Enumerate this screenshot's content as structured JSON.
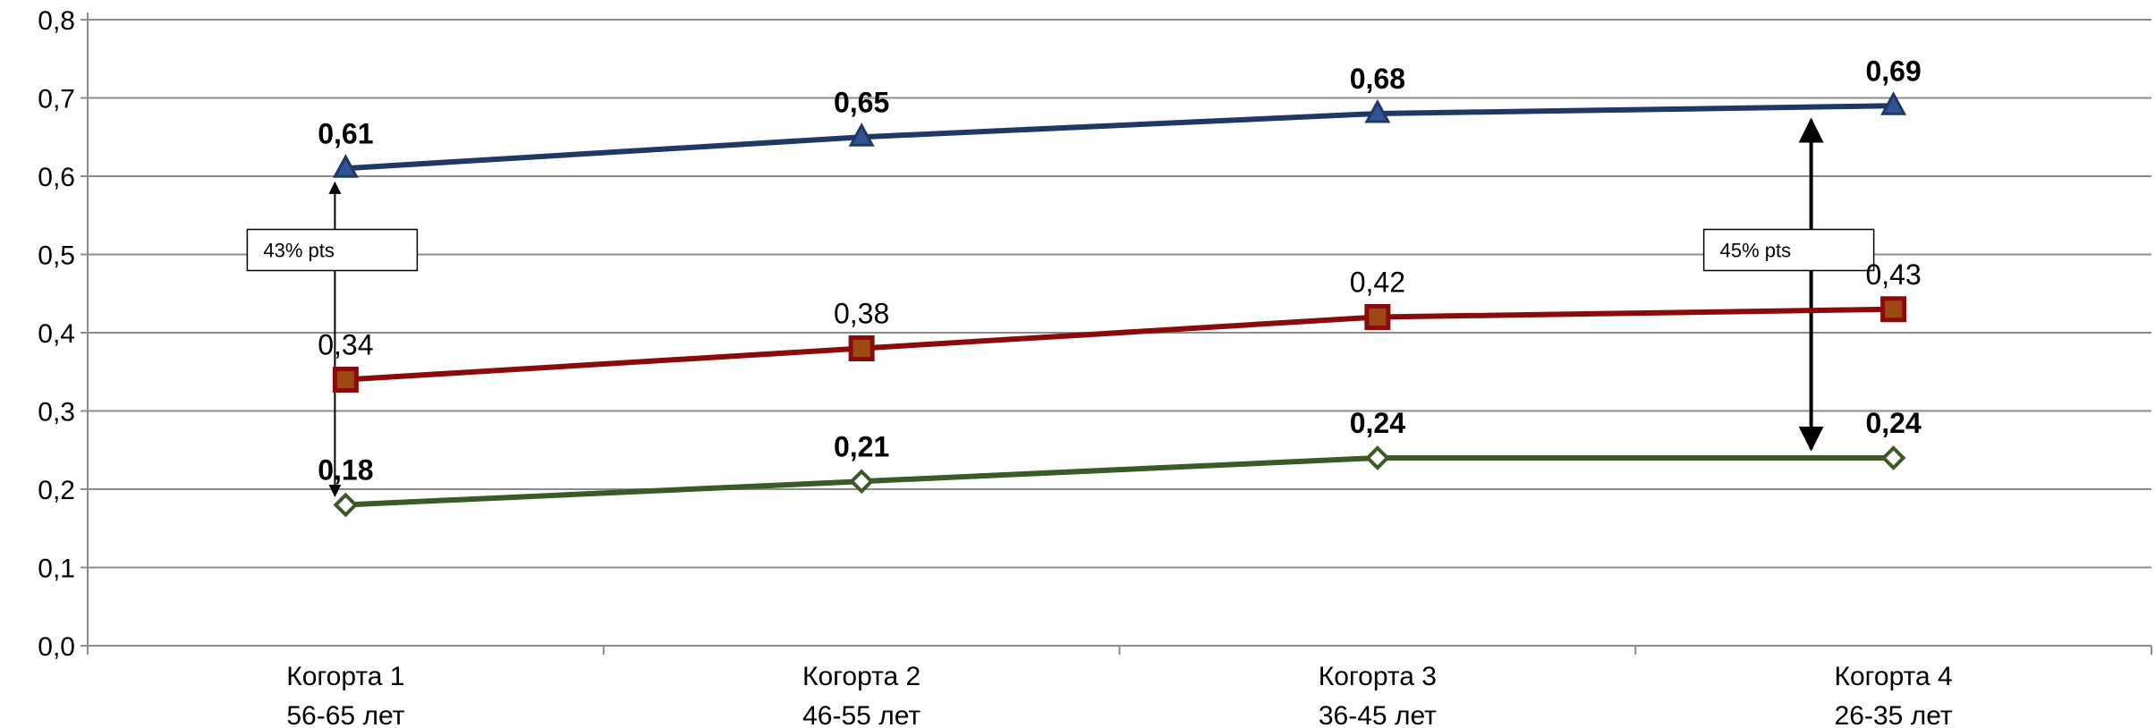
{
  "chart_data": {
    "type": "line",
    "categories": [
      {
        "line1": "Когорта 1",
        "line2": "56-65 лет"
      },
      {
        "line1": "Когорта 2",
        "line2": "46-55 лет"
      },
      {
        "line1": "Когорта 3",
        "line2": "36-45 лет"
      },
      {
        "line1": "Когорта 4",
        "line2": "26-35 лет"
      }
    ],
    "series": [
      {
        "values": [
          0.61,
          0.65,
          0.68,
          0.69
        ],
        "labels": [
          "0,61",
          "0,65",
          "0,68",
          "0,69"
        ],
        "label_bold": true,
        "color": "#1f3864",
        "marker": "triangle"
      },
      {
        "values": [
          0.34,
          0.38,
          0.42,
          0.43
        ],
        "labels": [
          "0,34",
          "0,38",
          "0,42",
          "0,43"
        ],
        "label_bold": false,
        "color": "#8b0a0a",
        "marker": "square"
      },
      {
        "values": [
          0.18,
          0.21,
          0.24,
          0.24
        ],
        "labels": [
          "0,18",
          "0,21",
          "0,24",
          "0,24"
        ],
        "label_bold": true,
        "color": "#3a5a26",
        "marker": "diamond"
      }
    ],
    "ylim": [
      0,
      0.8
    ],
    "yticks": [
      "0,0",
      "0,1",
      "0,2",
      "0,3",
      "0,4",
      "0,5",
      "0,6",
      "0,7",
      "0,8"
    ],
    "grid": true,
    "legend": "none",
    "annotations": [
      {
        "text": "43% pts",
        "category_index": 0,
        "from": 0.18,
        "to": 0.61
      },
      {
        "text": "45% pts",
        "category_index": 3,
        "from": 0.24,
        "to": 0.69
      }
    ]
  }
}
